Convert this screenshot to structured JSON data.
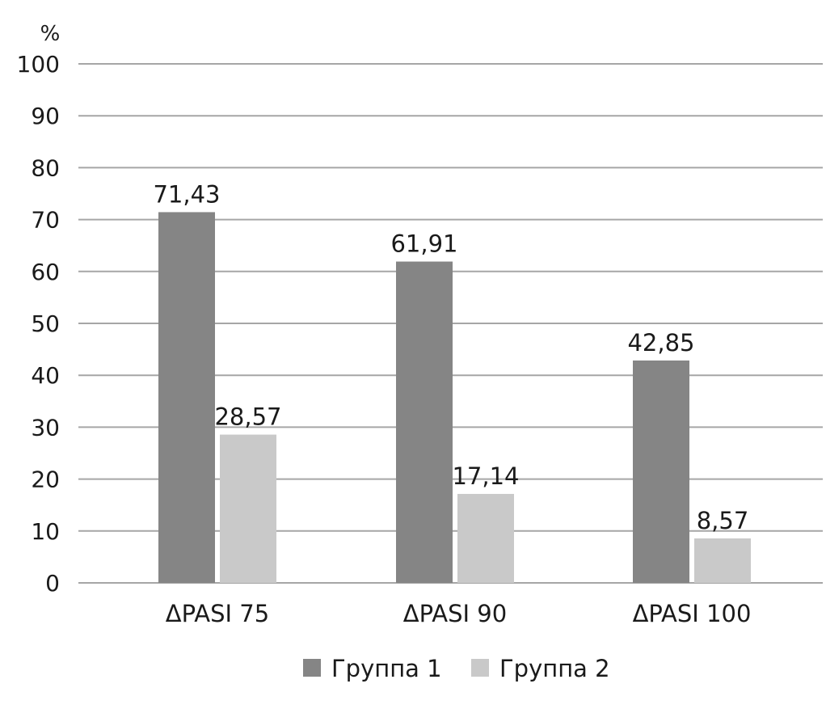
{
  "chart_data": {
    "type": "bar",
    "title": "",
    "xlabel": "",
    "ylabel": "%",
    "ylim": [
      0,
      100
    ],
    "yticks": [
      "0",
      "10",
      "20",
      "30",
      "40",
      "50",
      "60",
      "70",
      "80",
      "90",
      "100"
    ],
    "categories": [
      "ΔPASI 75",
      "ΔPASI 90",
      "ΔPASI 100"
    ],
    "series": [
      {
        "name": "Группа 1",
        "values": [
          71.43,
          61.91,
          42.85
        ],
        "labels": [
          "71,43",
          "61,91",
          "42,85"
        ],
        "color": "#858585"
      },
      {
        "name": "Группа 2",
        "values": [
          28.57,
          17.14,
          8.57
        ],
        "labels": [
          "28,57",
          "17,14",
          "8,57"
        ],
        "color": "#c9c9c9"
      }
    ],
    "grid": true,
    "legend": "bottom"
  }
}
